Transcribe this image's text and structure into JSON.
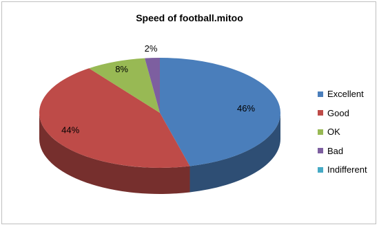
{
  "chart_data": {
    "type": "pie",
    "title": "Speed of football.mitoo",
    "categories": [
      "Excellent",
      "Good",
      "OK",
      "Bad",
      "Indifferent"
    ],
    "values": [
      46,
      44,
      8,
      2,
      0
    ],
    "labels": [
      "46%",
      "44%",
      "8%",
      "2%",
      ""
    ],
    "legend_position": "right",
    "style": "3d"
  },
  "colors": {
    "Excellent": "#4a7ebb",
    "Good": "#be4b48",
    "OK": "#98b954",
    "Bad": "#7d5fa0",
    "Indifferent": "#46aac5"
  }
}
